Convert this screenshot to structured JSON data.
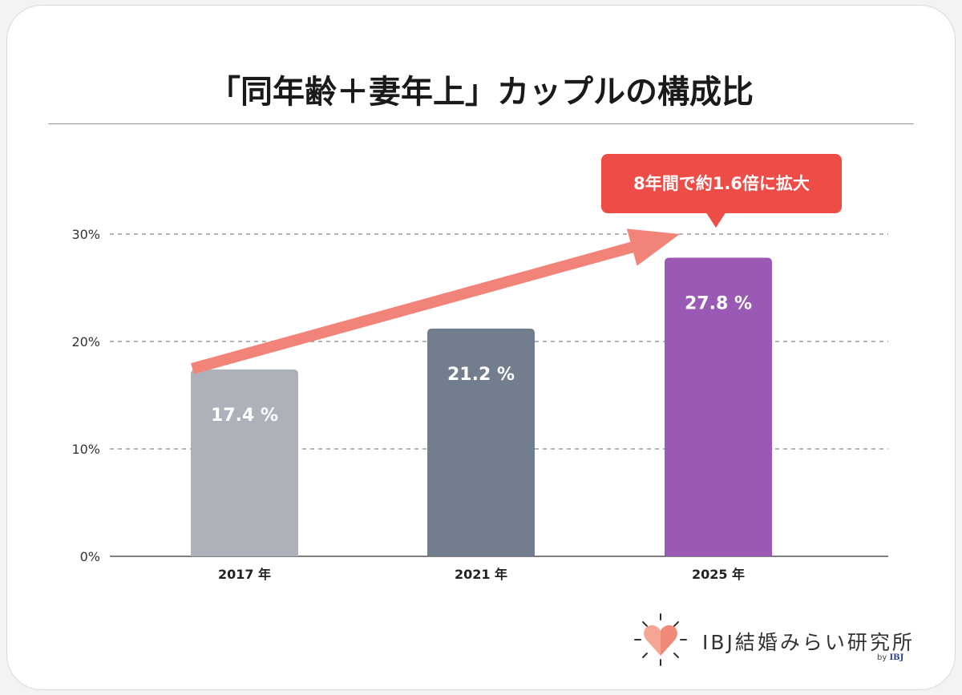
{
  "title": "「同年齢＋妻年上」カップルの構成比",
  "callout": "8年間で約1.6倍に拡大",
  "brand": {
    "name": "IBJ結婚みらい研究所",
    "by": "by",
    "parent": "IBJ"
  },
  "colors": {
    "bar_2017": "#adb1ba",
    "bar_2021": "#727d8d",
    "bar_2025": "#9b59b6",
    "arrow": "#f28379",
    "callout": "#ee4d47"
  },
  "chart_data": {
    "type": "bar",
    "categories": [
      "2017 年",
      "2021 年",
      "2025 年"
    ],
    "values": [
      17.4,
      21.2,
      27.8
    ],
    "value_labels": [
      "17.4 %",
      "21.2 %",
      "27.8 %"
    ],
    "ylim": [
      0,
      30
    ],
    "yticks": [
      0,
      10,
      20,
      30
    ],
    "ytick_labels": [
      "0%",
      "10%",
      "20%",
      "30%"
    ],
    "grid": true,
    "xlabel": "",
    "ylabel": ""
  }
}
